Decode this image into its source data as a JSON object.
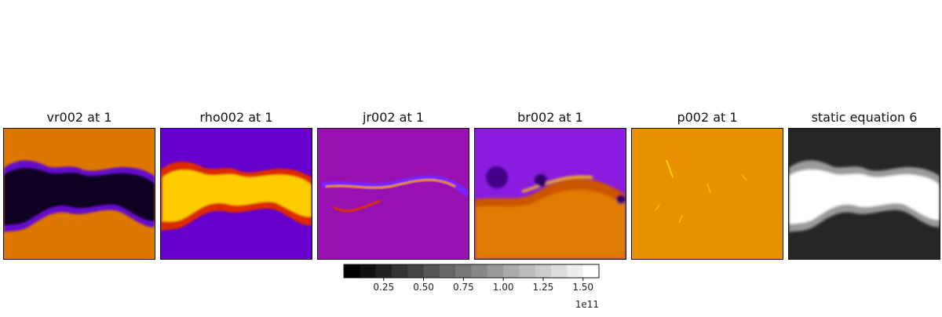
{
  "panels": [
    {
      "title": "vr002 at 1",
      "colormap": "gnuplot",
      "background": "#dd7700",
      "feature": "#0a0010"
    },
    {
      "title": "rho002 at 1",
      "colormap": "gnuplot",
      "background": "#6600cc",
      "feature": "#ffcc00"
    },
    {
      "title": "jr002 at 1",
      "colormap": "gnuplot",
      "background": "#9910b0",
      "feature": "#ee8800"
    },
    {
      "title": "br002 at 1",
      "colormap": "gnuplot",
      "background": "#8a1ce0",
      "feature": "#e07a00"
    },
    {
      "title": "p002 at 1",
      "colormap": "gnuplot",
      "background": "#e89000",
      "feature": "#f5d000"
    },
    {
      "title": "static equation 6",
      "colormap": "gray",
      "background": "#262626",
      "feature": "#ffffff"
    }
  ],
  "chart_data": {
    "type": "heatmap",
    "panel_titles": [
      "vr002 at 1",
      "rho002 at 1",
      "jr002 at 1",
      "br002 at 1",
      "p002 at 1",
      "static equation 6"
    ],
    "colorbar": {
      "colormap": "gray",
      "ticks": [
        0.25,
        0.5,
        0.75,
        1.0,
        1.25,
        1.5
      ],
      "tick_labels": [
        "0.25",
        "0.50",
        "0.75",
        "1.00",
        "1.25",
        "1.50"
      ],
      "range": [
        0.0,
        1.6
      ],
      "levels": 16,
      "offset_label": "1e11"
    }
  }
}
